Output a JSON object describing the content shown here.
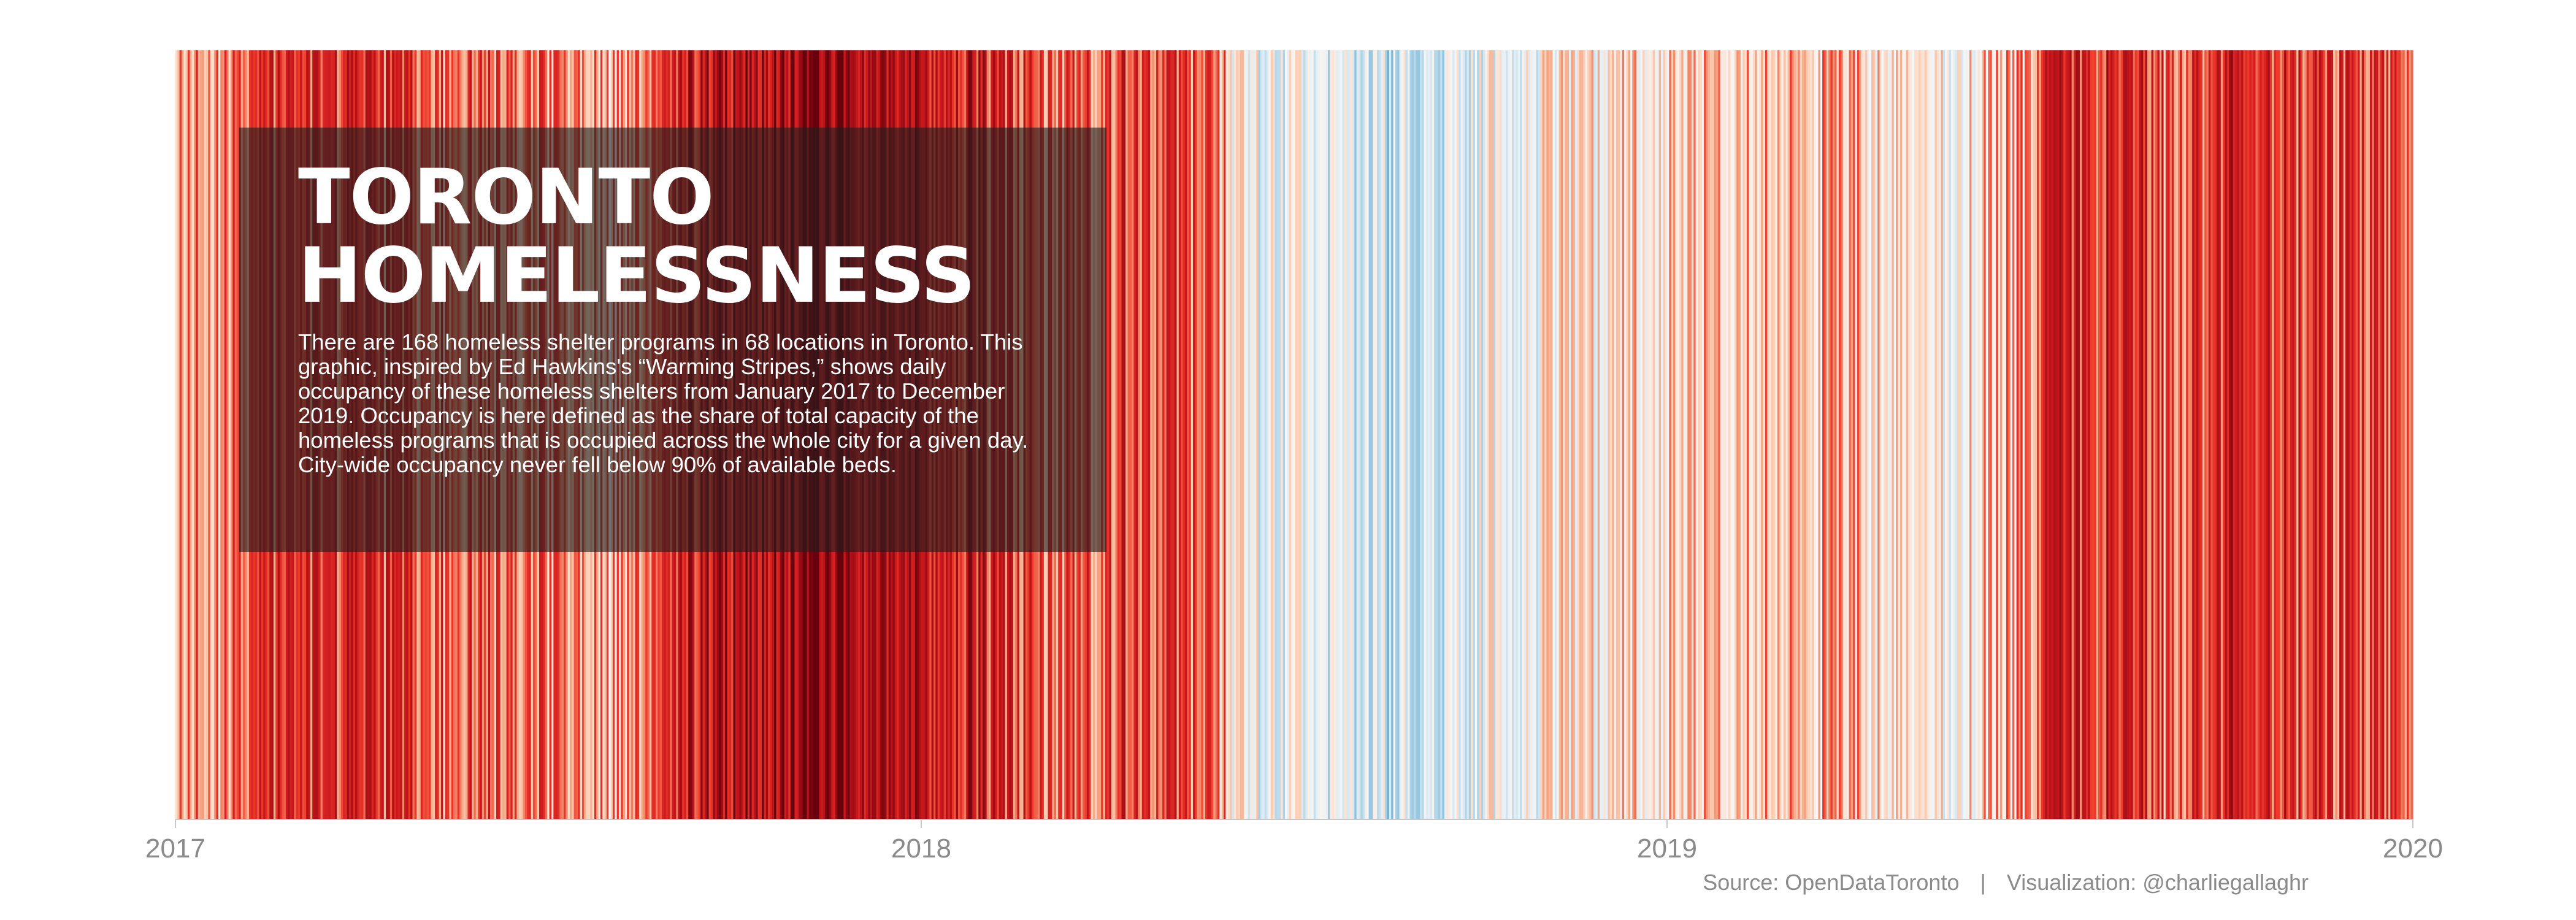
{
  "title": "TORONTO\nHOMELESSNESS",
  "description": "There are 168 homeless shelter programs in 68 locations in Toronto. This graphic, inspired by Ed Hawkins's “Warming Stripes,” shows daily occupancy of these homeless shelters from January 2017 to December 2019. Occupancy is here defined as the share of total capacity of the homeless programs that is occupied across the whole city for a given day. City-wide occupancy never fell below 90% of available beds.",
  "footer": {
    "source": "Source: OpenDataToronto",
    "separator": "|",
    "visualization": "Visualization: @charliegallaghr"
  },
  "chart_data": {
    "type": "heatmap",
    "xlabel": "",
    "ylabel": "",
    "x_ticks": [
      "2017",
      "2018",
      "2019",
      "2020"
    ],
    "xlim": [
      "2017-01-01",
      "2020-01-01"
    ],
    "color_scale": {
      "low": "#2166ac",
      "mid": "#f7f7f7",
      "high": "#67000d"
    },
    "grid": false,
    "legend": "none",
    "relative_occupancy_by_month": [
      {
        "month": "2017-01",
        "level": 0.6
      },
      {
        "month": "2017-02",
        "level": 0.7
      },
      {
        "month": "2017-03",
        "level": 0.76
      },
      {
        "month": "2017-04",
        "level": 0.74
      },
      {
        "month": "2017-05",
        "level": 0.66
      },
      {
        "month": "2017-06",
        "level": 0.68
      },
      {
        "month": "2017-07",
        "level": 0.6
      },
      {
        "month": "2017-08",
        "level": 0.55
      },
      {
        "month": "2017-09",
        "level": 0.8
      },
      {
        "month": "2017-10",
        "level": 0.86
      },
      {
        "month": "2017-11",
        "level": 0.94
      },
      {
        "month": "2017-12",
        "level": 0.92
      },
      {
        "month": "2018-01",
        "level": 0.84
      },
      {
        "month": "2018-02",
        "level": 0.76
      },
      {
        "month": "2018-03",
        "level": 0.64
      },
      {
        "month": "2018-04",
        "level": 0.72
      },
      {
        "month": "2018-05",
        "level": 0.74
      },
      {
        "month": "2018-06",
        "level": 0.4
      },
      {
        "month": "2018-07",
        "level": 0.36
      },
      {
        "month": "2018-08",
        "level": 0.33
      },
      {
        "month": "2018-09",
        "level": 0.3
      },
      {
        "month": "2018-10",
        "level": 0.4
      },
      {
        "month": "2018-11",
        "level": 0.44
      },
      {
        "month": "2018-12",
        "level": 0.5
      },
      {
        "month": "2019-01",
        "level": 0.52
      },
      {
        "month": "2019-02",
        "level": 0.58
      },
      {
        "month": "2019-03",
        "level": 0.56
      },
      {
        "month": "2019-04",
        "level": 0.54
      },
      {
        "month": "2019-05",
        "level": 0.44
      },
      {
        "month": "2019-06",
        "level": 0.5
      },
      {
        "month": "2019-07",
        "level": 0.74
      },
      {
        "month": "2019-08",
        "level": 0.78
      },
      {
        "month": "2019-09",
        "level": 0.66
      },
      {
        "month": "2019-10",
        "level": 0.78
      },
      {
        "month": "2019-11",
        "level": 0.72
      },
      {
        "month": "2019-12",
        "level": 0.68
      }
    ]
  }
}
